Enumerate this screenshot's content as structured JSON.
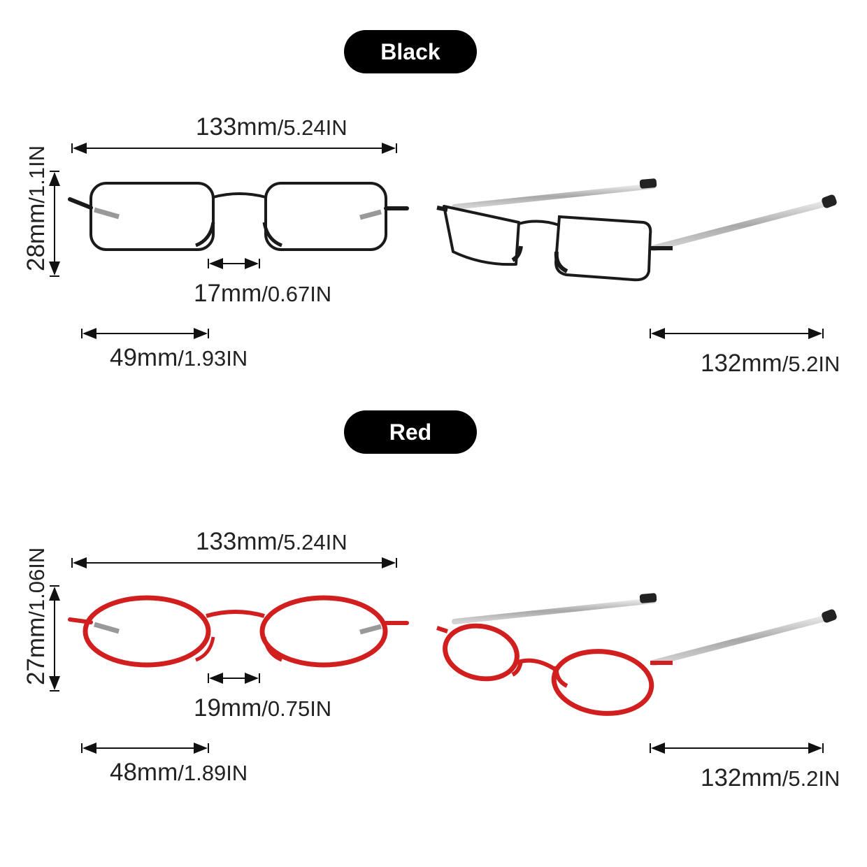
{
  "sections": [
    {
      "color_label": "Black",
      "frame_color": "#1a1a1a",
      "total_width": {
        "mm": "133mm",
        "in": "/5.24IN"
      },
      "height": {
        "mm": "28mm",
        "in": "/1.1IN"
      },
      "bridge": {
        "mm": "17mm",
        "in": "/0.67IN"
      },
      "lens_width": {
        "mm": "49mm",
        "in": "/1.93IN"
      },
      "temple_length": {
        "mm": "132mm",
        "in": "/5.2IN"
      },
      "lens_shape": "rectangle"
    },
    {
      "color_label": "Red",
      "frame_color": "#d11f1f",
      "total_width": {
        "mm": "133mm",
        "in": "/5.24IN"
      },
      "height": {
        "mm": "27mm",
        "in": "/1.06IN"
      },
      "bridge": {
        "mm": "19mm",
        "in": "/0.75IN"
      },
      "lens_width": {
        "mm": "48mm",
        "in": "/1.89IN"
      },
      "temple_length": {
        "mm": "132mm",
        "in": "/5.2IN"
      },
      "lens_shape": "oval"
    }
  ]
}
